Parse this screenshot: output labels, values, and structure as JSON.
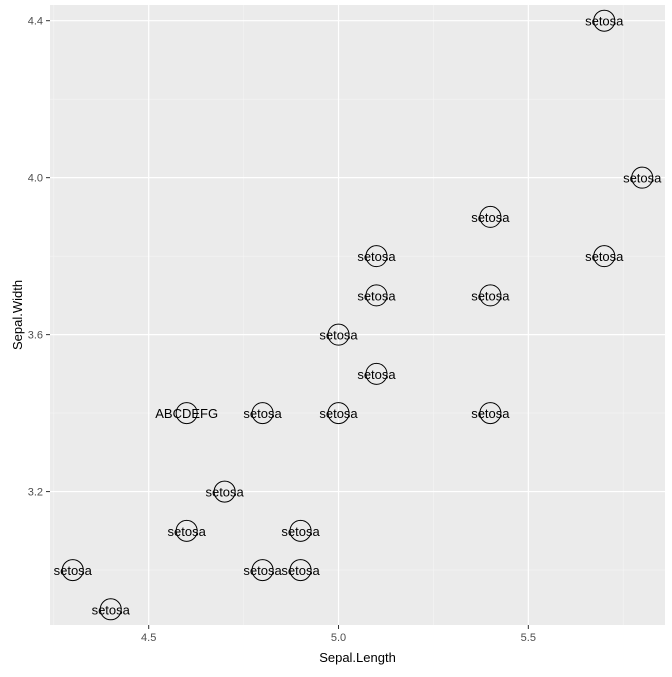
{
  "chart_data": {
    "type": "scatter",
    "title": "",
    "xlabel": "Sepal.Length",
    "ylabel": "Sepal.Width",
    "xlim": [
      4.24,
      5.86
    ],
    "ylim": [
      2.86,
      4.44
    ],
    "x_ticks": [
      4.5,
      5.0,
      5.5
    ],
    "x_tick_labels": [
      "4.5",
      "5.0",
      "5.5"
    ],
    "y_ticks": [
      3.2,
      3.6,
      4.0,
      4.4
    ],
    "y_tick_labels": [
      "3.2",
      "3.6",
      "4.0",
      "4.4"
    ],
    "x_minor": [
      4.25,
      4.75,
      5.25,
      5.75
    ],
    "y_minor": [
      3.0,
      3.4,
      3.8,
      4.2
    ],
    "grid": true,
    "marker": "open-circle",
    "points": [
      {
        "x": 5.7,
        "y": 4.4,
        "label": "setosa"
      },
      {
        "x": 5.8,
        "y": 4.0,
        "label": "setosa"
      },
      {
        "x": 5.4,
        "y": 3.9,
        "label": "setosa"
      },
      {
        "x": 5.1,
        "y": 3.8,
        "label": "setosa"
      },
      {
        "x": 5.7,
        "y": 3.8,
        "label": "setosa"
      },
      {
        "x": 5.1,
        "y": 3.7,
        "label": "setosa"
      },
      {
        "x": 5.4,
        "y": 3.7,
        "label": "setosa"
      },
      {
        "x": 5.0,
        "y": 3.6,
        "label": "setosa"
      },
      {
        "x": 5.1,
        "y": 3.5,
        "label": "setosa"
      },
      {
        "x": 4.6,
        "y": 3.4,
        "label": "ABCDEFG"
      },
      {
        "x": 4.8,
        "y": 3.4,
        "label": "setosa"
      },
      {
        "x": 5.0,
        "y": 3.4,
        "label": "setosa"
      },
      {
        "x": 5.4,
        "y": 3.4,
        "label": "setosa"
      },
      {
        "x": 4.7,
        "y": 3.2,
        "label": "setosa"
      },
      {
        "x": 4.6,
        "y": 3.1,
        "label": "setosa"
      },
      {
        "x": 4.9,
        "y": 3.1,
        "label": "setosa"
      },
      {
        "x": 4.3,
        "y": 3.0,
        "label": "setosa"
      },
      {
        "x": 4.8,
        "y": 3.0,
        "label": "setosa"
      },
      {
        "x": 4.9,
        "y": 3.0,
        "label": "setosa"
      },
      {
        "x": 4.4,
        "y": 2.9,
        "label": "setosa"
      }
    ],
    "colors": {
      "panel_background": "#ebebeb",
      "grid_major": "#ffffff",
      "grid_minor": "#f5f5f5",
      "marker_stroke": "#000000",
      "text": "#000000",
      "tick_text": "#4d4d4d",
      "tick_mark": "#333333"
    }
  }
}
